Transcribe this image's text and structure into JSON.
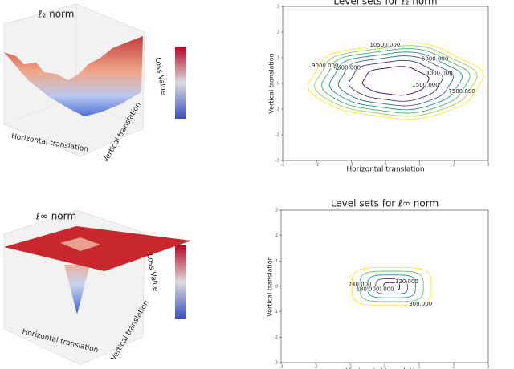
{
  "chart_data": [
    {
      "type": "surface",
      "title": "ℓ₂ norm",
      "xlabel": "Horizontal translation",
      "ylabel": "Vertical translation",
      "zlabel": "Loss Value",
      "colormap": "coolwarm"
    },
    {
      "type": "contour",
      "title": "Level sets for ℓ₂ norm",
      "xlabel": "Horizontal translation",
      "ylabel": "Vertical translation",
      "colormap": "viridis",
      "levels": [
        1500,
        3000,
        4500,
        6000,
        7500,
        9000,
        10500
      ],
      "level_labels": [
        "1500.000",
        "3000.000",
        "4500.000",
        "6000.000",
        "7500.000",
        "9000.000",
        "10500.000"
      ],
      "xlim": [
        -3,
        3
      ],
      "ylim": [
        -3,
        3
      ],
      "xticks": [
        -3,
        -2,
        -1,
        0,
        1,
        2,
        3
      ],
      "yticks": [
        -3,
        -2,
        -1,
        0,
        1,
        2,
        3
      ]
    },
    {
      "type": "surface",
      "title": "ℓ∞ norm",
      "xlabel": "Horizontal translation",
      "ylabel": "Vertical translation",
      "zlabel": "Loss Value",
      "colormap": "coolwarm"
    },
    {
      "type": "contour",
      "title": "Level sets for ℓ∞ norm",
      "xlabel": "Horizontal translation",
      "ylabel": "Vertical translation",
      "colormap": "viridis",
      "levels": [
        60,
        120,
        180,
        240,
        300
      ],
      "level_labels": [
        "60.000",
        "120.000",
        "180.000",
        "240.000",
        "300.000"
      ],
      "xlim": [
        -3,
        3
      ],
      "ylim": [
        -3,
        3
      ],
      "xticks": [
        -3,
        -2,
        -1,
        0,
        1,
        2,
        3
      ],
      "yticks": [
        -3,
        -2,
        -1,
        0,
        1,
        2,
        3
      ]
    }
  ]
}
